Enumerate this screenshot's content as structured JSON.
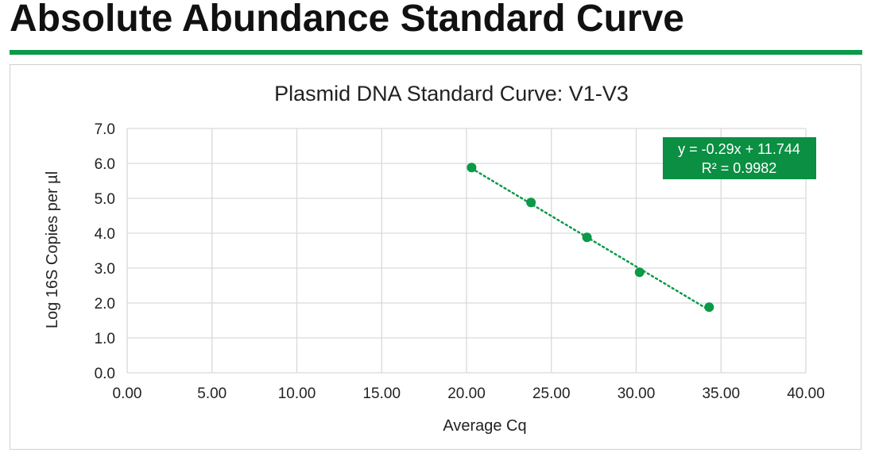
{
  "slide": {
    "title": "Absolute Abundance Standard Curve"
  },
  "colors": {
    "accent": "#0a9a48",
    "label_bg": "#0a8f43",
    "grid": "#d9d9d9",
    "text": "#222222"
  },
  "chart_data": {
    "type": "scatter",
    "title": "Plasmid DNA Standard Curve: V1-V3",
    "xlabel": "Average Cq",
    "ylabel": "Log 16S Copies per µl",
    "xlim": [
      0,
      40
    ],
    "ylim": [
      0,
      7
    ],
    "x_ticks": [
      "0.00",
      "5.00",
      "10.00",
      "15.00",
      "20.00",
      "25.00",
      "30.00",
      "35.00",
      "40.00"
    ],
    "y_ticks": [
      "0.0",
      "1.0",
      "2.0",
      "3.0",
      "4.0",
      "5.0",
      "6.0",
      "7.0"
    ],
    "grid": true,
    "legend": "none",
    "series": [
      {
        "x": [
          20.3,
          23.8,
          27.1,
          30.2,
          34.3
        ],
        "y": [
          5.88,
          4.88,
          3.88,
          2.88,
          1.88
        ]
      }
    ],
    "trendline": {
      "style": "dotted",
      "slope": -0.29,
      "intercept": 11.744,
      "equation_label": "y = -0.29x + 11.744",
      "r2_label": "R² = 0.9982"
    }
  }
}
